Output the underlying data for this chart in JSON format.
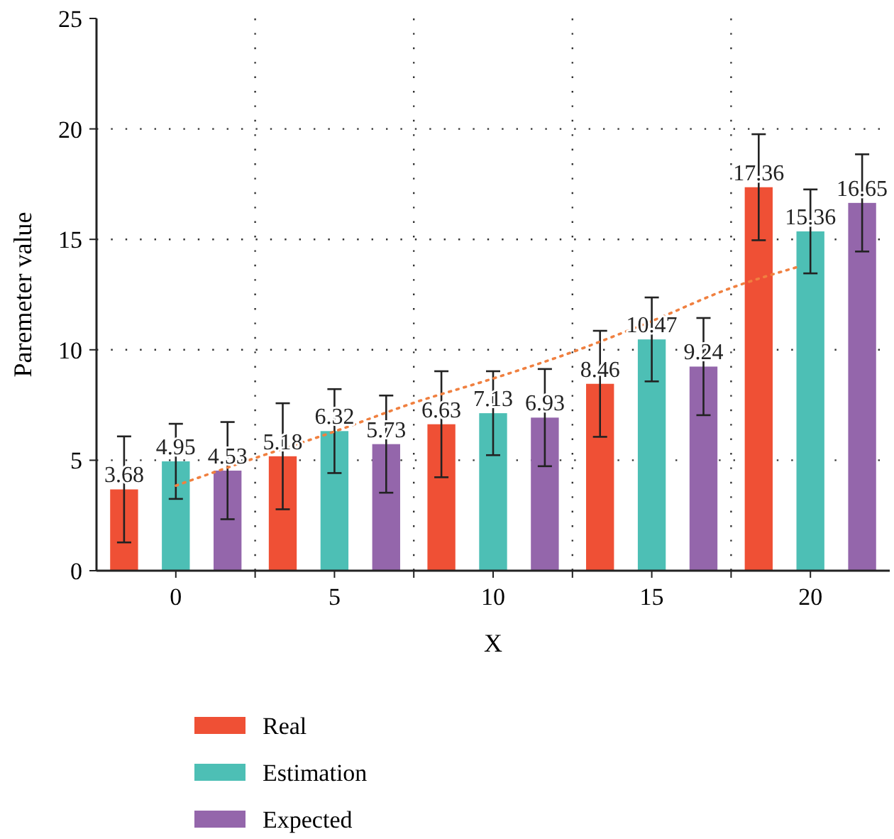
{
  "chart_data": {
    "type": "bar",
    "xlabel": "X",
    "ylabel": "Paremeter value",
    "x": [
      0,
      5,
      10,
      15,
      20
    ],
    "series": [
      {
        "name": "Real",
        "color": "#ef5035",
        "values": [
          3.68,
          5.18,
          6.63,
          8.46,
          17.36
        ],
        "value_labels": [
          "3.68",
          "5.18",
          "6.63",
          "8.46",
          "17.36"
        ],
        "errors": [
          2.4,
          2.4,
          2.4,
          2.4,
          2.4
        ]
      },
      {
        "name": "Estimation",
        "color": "#4dbfb5",
        "values": [
          4.95,
          6.32,
          7.13,
          10.47,
          15.36
        ],
        "value_labels": [
          "4.95",
          "6.32",
          "7.13",
          "10.47",
          "15.36"
        ],
        "errors": [
          1.7,
          1.9,
          1.9,
          1.9,
          1.9
        ]
      },
      {
        "name": "Expected",
        "color": "#9466ab",
        "values": [
          4.53,
          5.73,
          6.93,
          9.24,
          16.65
        ],
        "value_labels": [
          "4.53",
          "5.73",
          "6.93",
          "9.24",
          "16.65"
        ],
        "errors": [
          2.2,
          2.2,
          2.2,
          2.2,
          2.2
        ]
      },
      {
        "type": "line",
        "color": "#f08040",
        "line_style": "dotted",
        "marker": "none",
        "x": [
          0,
          2.5,
          5,
          7.5,
          10,
          12.5,
          15,
          17.5,
          19.6
        ],
        "values": [
          3.85,
          5.1,
          6.3,
          7.6,
          8.7,
          9.9,
          11.3,
          12.8,
          13.75
        ]
      }
    ],
    "xlim": [
      -2.5,
      22.5
    ],
    "xticks": [
      0,
      {
        "value": 2.5,
        "label": null
      },
      5,
      {
        "value": 7.5,
        "label": null
      },
      10,
      {
        "value": 12.5,
        "label": null
      },
      15,
      {
        "value": 17.5,
        "label": null
      },
      20
    ],
    "ylim": [
      0,
      25
    ],
    "yticks": [
      0,
      5,
      10,
      15,
      20,
      25
    ],
    "grid": true,
    "legend": "bottom"
  }
}
